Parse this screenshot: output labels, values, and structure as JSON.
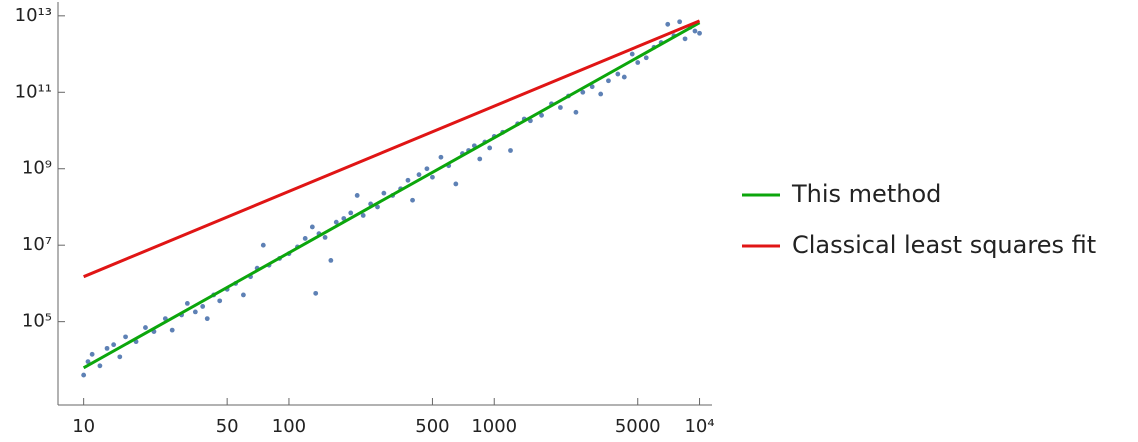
{
  "chart_data": {
    "type": "scatter",
    "xscale": "log",
    "yscale": "log",
    "xlim": [
      7.5,
      11500
    ],
    "ylim": [
      660,
      23000000000000
    ],
    "xticks": [
      10,
      50,
      100,
      500,
      1000,
      5000,
      {
        "value": 10000,
        "label": "10⁴"
      }
    ],
    "yticks": [
      {
        "value": 100000,
        "label": "10⁵"
      },
      {
        "value": 10000000,
        "label": "10⁷"
      },
      {
        "value": 1000000000,
        "label": "10⁹"
      },
      {
        "value": 100000000000,
        "label": "10¹¹"
      },
      {
        "value": 10000000000000,
        "label": "10¹³"
      }
    ],
    "legend": "right",
    "series": [
      {
        "type": "scatter",
        "color": "#5e81b5",
        "x": [
          10,
          10.5,
          11,
          12,
          13,
          14,
          15,
          16,
          18,
          20,
          22,
          25,
          27,
          30,
          32,
          35,
          38,
          40,
          43,
          46,
          50,
          55,
          60,
          65,
          70,
          75,
          80,
          90,
          100,
          110,
          120,
          130,
          135,
          140,
          150,
          160,
          170,
          185,
          200,
          215,
          230,
          250,
          270,
          290,
          320,
          350,
          380,
          400,
          430,
          470,
          500,
          550,
          600,
          650,
          700,
          750,
          800,
          850,
          900,
          950,
          1000,
          1100,
          1200,
          1300,
          1400,
          1500,
          1700,
          1900,
          2100,
          2300,
          2500,
          2700,
          3000,
          3300,
          3600,
          4000,
          4300,
          4700,
          5000,
          5500,
          6000,
          6500,
          7000,
          7500,
          8000,
          8500,
          9000,
          9500,
          10000
        ],
        "values": [
          4000,
          9000,
          14000,
          7000,
          20000,
          25000,
          12000,
          40000,
          30000,
          70000,
          55000,
          120000,
          60000,
          150000,
          300000,
          180000,
          250000,
          120000,
          500000,
          350000,
          700000,
          1000000,
          500000,
          1500000,
          2500000,
          10000000,
          3000000,
          4500000,
          6000000,
          9000000,
          15000000,
          30000000,
          550000,
          20000000,
          16000000,
          4000000,
          40000000,
          50000000,
          70000000,
          200000000,
          60000000,
          120000000,
          100000000,
          230000000,
          200000000,
          300000000,
          500000000,
          150000000,
          700000000,
          1000000000,
          600000000,
          2000000000,
          1200000000,
          400000000,
          2500000000,
          3000000000,
          4000000000,
          1800000000,
          5000000000,
          3500000000,
          7000000000,
          9000000000,
          3000000000,
          15000000000,
          20000000000,
          18000000000,
          25000000000,
          50000000000,
          40000000000,
          80000000000,
          30000000000,
          100000000000,
          140000000000,
          90000000000,
          200000000000,
          300000000000,
          250000000000,
          1000000000000,
          600000000000,
          800000000000,
          1500000000000,
          2000000000000,
          6000000000000,
          3000000000000,
          7000000000000,
          2500000000000,
          5000000000000,
          4000000000000,
          3500000000000
        ]
      },
      {
        "type": "line",
        "name": "This method",
        "color": "#0ca60c",
        "x": [
          10,
          10000
        ],
        "values": [
          6200,
          6600000000000
        ]
      },
      {
        "type": "line",
        "name": "Classical least squares fit",
        "color": "#e01515",
        "x": [
          10,
          10000
        ],
        "values": [
          1500000,
          7400000000000
        ]
      }
    ]
  }
}
